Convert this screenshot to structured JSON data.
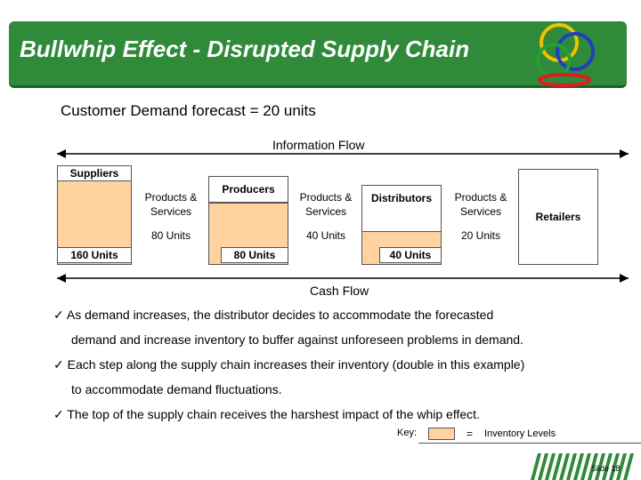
{
  "title": "Bullwhip Effect - Disrupted Supply Chain",
  "forecast": "Customer Demand forecast = 20 units",
  "flows": {
    "information": "Information Flow",
    "cash": "Cash Flow"
  },
  "nodes": {
    "suppliers": {
      "label": "Suppliers",
      "inventory": "160 Units"
    },
    "producers": {
      "label": "Producers",
      "inventory": "80 Units"
    },
    "distributors": {
      "label": "Distributors",
      "inventory": "40 Units"
    },
    "retailers": {
      "label": "Retailers"
    }
  },
  "links": [
    {
      "label1": "Products &",
      "label2": "Services",
      "units": "80 Units"
    },
    {
      "label1": "Products &",
      "label2": "Services",
      "units": "40 Units"
    },
    {
      "label1": "Products &",
      "label2": "Services",
      "units": "20 Units"
    }
  ],
  "bullets": [
    {
      "line1": "As demand increases, the distributor decides to accommodate the forecasted",
      "line2": "demand and increase inventory to buffer against unforeseen problems in demand."
    },
    {
      "line1": "Each step along the supply chain increases their inventory (double in this example)",
      "line2": "to accommodate demand fluctuations."
    },
    {
      "line1": "The top of the supply chain receives the harshest impact of the whip effect.",
      "line2": ""
    }
  ],
  "key": {
    "label": "Key:",
    "equals": "=",
    "meaning": "Inventory Levels",
    "swatch_color": "#ffd2a0"
  },
  "slide_number": "Slide 18",
  "icons": {
    "check": "checkmark-icon"
  },
  "colors": {
    "banner": "#2f8a3a",
    "inventory": "#ffd2a0"
  }
}
